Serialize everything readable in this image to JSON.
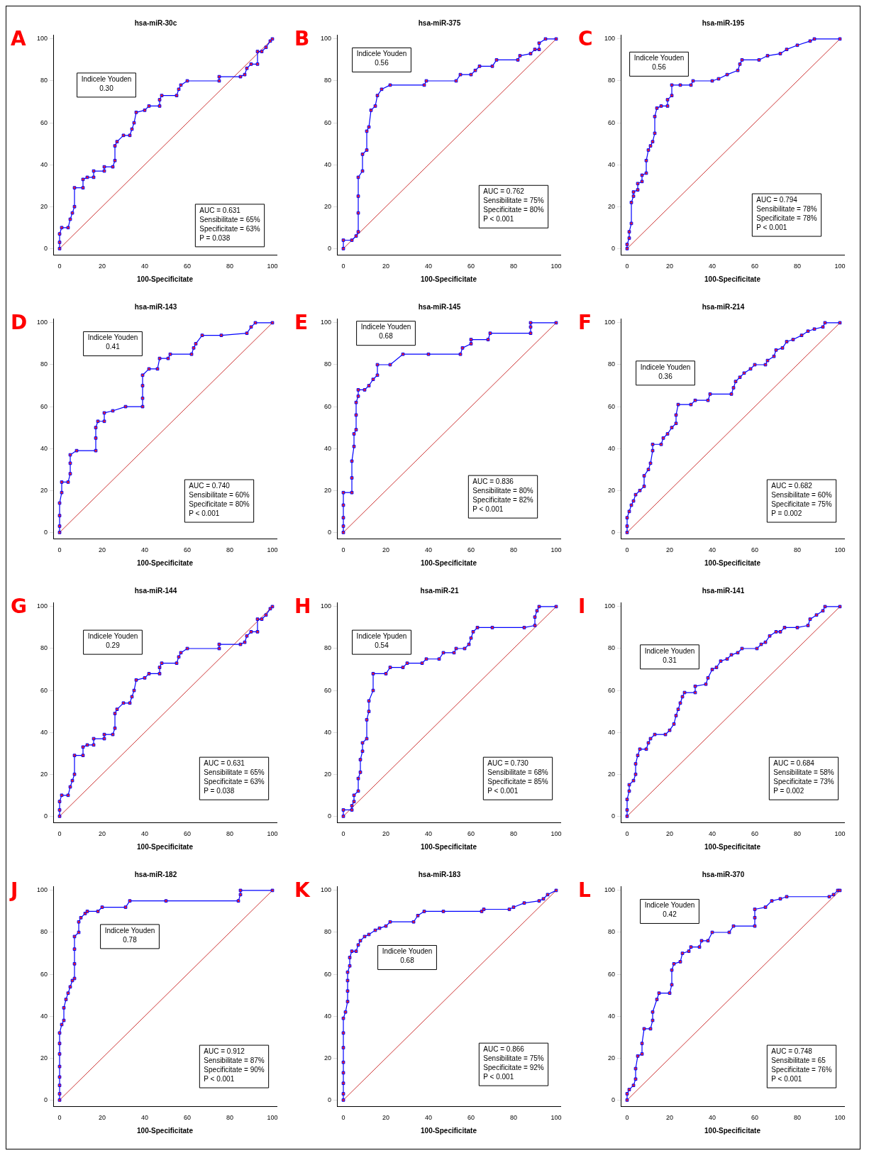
{
  "chart_data": [
    {
      "type": "line",
      "title": "hsa-miR-30c",
      "xlabel": "100-Specificitate",
      "xlim": [
        -3,
        102
      ],
      "ylim": [
        -3,
        102
      ],
      "xticks": [
        0,
        20,
        40,
        60,
        80,
        100
      ],
      "yticks": [
        0,
        20,
        40,
        60,
        80,
        100
      ],
      "grid": false,
      "legend": false,
      "series": [
        {
          "color": "#0000ff",
          "marker": "square",
          "x": [
            0,
            0,
            0,
            1,
            4,
            5,
            6,
            7,
            7,
            11,
            11,
            13,
            16,
            16,
            21,
            21,
            25,
            26,
            26,
            27,
            30,
            33,
            34,
            35,
            36,
            40,
            42,
            47,
            47,
            48,
            55,
            56,
            57,
            60,
            75,
            75,
            85,
            87,
            88,
            90,
            93,
            93,
            95,
            97,
            99,
            100
          ],
          "values": [
            0,
            3,
            7,
            10,
            10,
            14,
            17,
            20,
            29,
            29,
            33,
            34,
            34,
            37,
            37,
            39,
            39,
            42,
            49,
            51,
            54,
            54,
            57,
            60,
            65,
            66,
            68,
            68,
            71,
            73,
            73,
            76,
            78,
            80,
            80,
            82,
            82,
            83,
            86,
            88,
            88,
            94,
            94,
            96,
            99,
            100
          ]
        },
        {
          "color": "#c00000",
          "marker": "none",
          "x": [
            0,
            100
          ],
          "values": [
            0,
            100
          ]
        }
      ],
      "annotations": [
        "A",
        "Indicele Youden\n0.30",
        "AUC = 0.631\nSensibilitate = 65%\nSpecificitate = 63%\nP = 0.038"
      ]
    },
    {
      "type": "line",
      "title": "hsa-miR-375",
      "xlabel": "100-Specificitate",
      "xlim": [
        -3,
        102
      ],
      "ylim": [
        -3,
        102
      ],
      "xticks": [
        0,
        20,
        40,
        60,
        80,
        100
      ],
      "yticks": [
        0,
        20,
        40,
        60,
        80,
        100
      ],
      "grid": false,
      "legend": false,
      "series": [
        {
          "color": "#0000ff",
          "marker": "square",
          "x": [
            0,
            0,
            4,
            6,
            7,
            7,
            7,
            7,
            9,
            9,
            11,
            11,
            12,
            13,
            15,
            16,
            18,
            22,
            38,
            39,
            53,
            55,
            60,
            62,
            64,
            70,
            72,
            82,
            83,
            88,
            90,
            92,
            92,
            95,
            100
          ],
          "values": [
            0,
            4,
            4,
            6,
            8,
            17,
            25,
            34,
            37,
            45,
            47,
            56,
            58,
            66,
            68,
            73,
            76,
            78,
            78,
            80,
            80,
            83,
            83,
            85,
            87,
            87,
            90,
            90,
            92,
            93,
            95,
            95,
            98,
            100,
            100
          ]
        },
        {
          "color": "#c00000",
          "marker": "none",
          "x": [
            0,
            100
          ],
          "values": [
            0,
            100
          ]
        }
      ],
      "annotations": [
        "B",
        "Indicele Youden\n0.56",
        "AUC = 0.762\nSensibilitate = 75%\nSpecificitate = 80%\nP < 0.001"
      ]
    },
    {
      "type": "line",
      "title": "hsa-miR-195",
      "xlabel": "100-Specificitate",
      "xlim": [
        -3,
        102
      ],
      "ylim": [
        -3,
        102
      ],
      "xticks": [
        0,
        20,
        40,
        60,
        80,
        100
      ],
      "yticks": [
        0,
        20,
        40,
        60,
        80,
        100
      ],
      "grid": false,
      "legend": false,
      "series": [
        {
          "color": "#0000ff",
          "marker": "square",
          "x": [
            0,
            0,
            1,
            1,
            2,
            2,
            3,
            3,
            5,
            5,
            7,
            7,
            9,
            9,
            10,
            11,
            12,
            13,
            13,
            14,
            16,
            19,
            19,
            21,
            21,
            25,
            30,
            31,
            40,
            43,
            47,
            52,
            53,
            54,
            62,
            66,
            72,
            75,
            80,
            86,
            88,
            100
          ],
          "values": [
            0,
            2,
            5,
            8,
            12,
            22,
            25,
            27,
            28,
            31,
            32,
            35,
            36,
            42,
            47,
            49,
            51,
            55,
            63,
            67,
            68,
            68,
            71,
            73,
            78,
            78,
            78,
            80,
            80,
            81,
            83,
            85,
            88,
            90,
            90,
            92,
            93,
            95,
            97,
            99,
            100,
            100
          ]
        },
        {
          "color": "#c00000",
          "marker": "none",
          "x": [
            0,
            100
          ],
          "values": [
            0,
            100
          ]
        }
      ],
      "annotations": [
        "C",
        "Indicele Youden\n0.56",
        "AUC = 0.794\nSensibilitate = 78%\nSpecificitate = 78%\nP < 0.001"
      ]
    },
    {
      "type": "line",
      "title": "hsa-miR-143",
      "xlabel": "100-Specificitate",
      "xlim": [
        -3,
        102
      ],
      "ylim": [
        -3,
        102
      ],
      "xticks": [
        0,
        20,
        40,
        60,
        80,
        100
      ],
      "yticks": [
        0,
        20,
        40,
        60,
        80,
        100
      ],
      "grid": false,
      "legend": false,
      "series": [
        {
          "color": "#0000ff",
          "marker": "square",
          "x": [
            0,
            0,
            0,
            0,
            1,
            1,
            4,
            5,
            5,
            5,
            8,
            17,
            17,
            17,
            18,
            21,
            21,
            25,
            31,
            39,
            39,
            39,
            39,
            42,
            46,
            47,
            51,
            52,
            62,
            63,
            64,
            67,
            76,
            88,
            90,
            92,
            100
          ],
          "values": [
            0,
            3,
            8,
            14,
            19,
            24,
            24,
            28,
            33,
            37,
            39,
            39,
            45,
            50,
            53,
            53,
            57,
            58,
            60,
            60,
            64,
            70,
            75,
            78,
            78,
            83,
            83,
            85,
            85,
            88,
            90,
            94,
            94,
            95,
            98,
            100,
            100
          ]
        },
        {
          "color": "#c00000",
          "marker": "none",
          "x": [
            0,
            100
          ],
          "values": [
            0,
            100
          ]
        }
      ],
      "annotations": [
        "D",
        "Indicele Youden\n0.41",
        "AUC = 0.740\nSensibilitate = 60%\nSpecificitate = 80%\nP < 0.001"
      ]
    },
    {
      "type": "line",
      "title": "hsa-miR-145",
      "xlabel": "100-Specificitate",
      "xlim": [
        -3,
        102
      ],
      "ylim": [
        -3,
        102
      ],
      "xticks": [
        0,
        20,
        40,
        60,
        80,
        100
      ],
      "yticks": [
        0,
        20,
        40,
        60,
        80,
        100
      ],
      "grid": false,
      "legend": false,
      "series": [
        {
          "color": "#0000ff",
          "marker": "square",
          "x": [
            0,
            0,
            0,
            0,
            0,
            4,
            4,
            4,
            5,
            5,
            6,
            6,
            6,
            7,
            7,
            10,
            12,
            14,
            16,
            16,
            22,
            28,
            40,
            55,
            56,
            60,
            60,
            68,
            69,
            88,
            88,
            88,
            100
          ],
          "values": [
            0,
            3,
            7,
            13,
            19,
            19,
            26,
            34,
            41,
            47,
            49,
            56,
            62,
            65,
            68,
            68,
            70,
            73,
            75,
            80,
            80,
            85,
            85,
            85,
            88,
            90,
            92,
            92,
            95,
            95,
            98,
            100,
            100
          ]
        },
        {
          "color": "#c00000",
          "marker": "none",
          "x": [
            0,
            100
          ],
          "values": [
            0,
            100
          ]
        }
      ],
      "annotations": [
        "E",
        "Indicele Youden\n0.68",
        "AUC = 0.836\nSensibilitate = 80%\nSpecificitate = 82%\nP < 0.001"
      ]
    },
    {
      "type": "line",
      "title": "hsa-miR-214",
      "xlabel": "100-Specificitate",
      "xlim": [
        -3,
        102
      ],
      "ylim": [
        -3,
        102
      ],
      "xticks": [
        0,
        20,
        40,
        60,
        80,
        100
      ],
      "yticks": [
        0,
        20,
        40,
        60,
        80,
        100
      ],
      "grid": false,
      "legend": false,
      "series": [
        {
          "color": "#0000ff",
          "marker": "square",
          "x": [
            0,
            0,
            0,
            1,
            2,
            3,
            4,
            6,
            8,
            8,
            10,
            11,
            12,
            12,
            16,
            17,
            19,
            21,
            23,
            23,
            24,
            30,
            32,
            38,
            39,
            49,
            50,
            51,
            53,
            55,
            58,
            60,
            65,
            66,
            69,
            70,
            73,
            75,
            78,
            82,
            85,
            88,
            92,
            93,
            100
          ],
          "values": [
            0,
            3,
            7,
            10,
            13,
            15,
            18,
            20,
            22,
            27,
            30,
            33,
            39,
            42,
            42,
            45,
            47,
            50,
            52,
            56,
            61,
            61,
            63,
            63,
            66,
            66,
            69,
            72,
            74,
            76,
            78,
            80,
            80,
            82,
            84,
            87,
            88,
            91,
            92,
            94,
            96,
            97,
            98,
            100,
            100
          ]
        },
        {
          "color": "#c00000",
          "marker": "none",
          "x": [
            0,
            100
          ],
          "values": [
            0,
            100
          ]
        }
      ],
      "annotations": [
        "F",
        "Indicele Youden\n0.36",
        "AUC = 0.682\nSensibilitate = 60%\nSpecificitate = 75%\nP = 0.002"
      ]
    },
    {
      "type": "line",
      "title": "hsa-miR-144",
      "xlabel": "100-Specificitate",
      "xlim": [
        -3,
        102
      ],
      "ylim": [
        -3,
        102
      ],
      "xticks": [
        0,
        20,
        40,
        60,
        80,
        100
      ],
      "yticks": [
        0,
        20,
        40,
        60,
        80,
        100
      ],
      "grid": false,
      "legend": false,
      "series": [
        {
          "color": "#0000ff",
          "marker": "square",
          "x": [
            0,
            0,
            0,
            1,
            4,
            5,
            6,
            7,
            7,
            11,
            11,
            13,
            16,
            16,
            21,
            21,
            25,
            26,
            26,
            27,
            30,
            33,
            34,
            35,
            36,
            40,
            42,
            47,
            47,
            48,
            55,
            56,
            57,
            60,
            75,
            75,
            85,
            87,
            88,
            90,
            93,
            93,
            95,
            97,
            99,
            100
          ],
          "values": [
            0,
            3,
            7,
            10,
            10,
            14,
            17,
            20,
            29,
            29,
            33,
            34,
            34,
            37,
            37,
            39,
            39,
            42,
            49,
            51,
            54,
            54,
            57,
            60,
            65,
            66,
            68,
            68,
            71,
            73,
            73,
            76,
            78,
            80,
            80,
            82,
            82,
            83,
            86,
            88,
            88,
            94,
            94,
            96,
            99,
            100
          ]
        },
        {
          "color": "#c00000",
          "marker": "none",
          "x": [
            0,
            100
          ],
          "values": [
            0,
            100
          ]
        }
      ],
      "annotations": [
        "G",
        "Indicele Youden\n0.29",
        "AUC = 0.631\nSensibilitate = 65%\nSpecificitate = 63%\nP = 0.038"
      ]
    },
    {
      "type": "line",
      "title": "hsa-miR-21",
      "xlabel": "100-Specificitate",
      "xlim": [
        -3,
        102
      ],
      "ylim": [
        -3,
        102
      ],
      "xticks": [
        0,
        20,
        40,
        60,
        80,
        100
      ],
      "yticks": [
        0,
        20,
        40,
        60,
        80,
        100
      ],
      "grid": false,
      "legend": false,
      "series": [
        {
          "color": "#0000ff",
          "marker": "square",
          "x": [
            0,
            0,
            4,
            4,
            5,
            5,
            7,
            7,
            8,
            8,
            9,
            9,
            11,
            11,
            12,
            12,
            14,
            14,
            20,
            22,
            28,
            30,
            37,
            39,
            45,
            47,
            52,
            53,
            57,
            59,
            60,
            61,
            63,
            70,
            85,
            90,
            90,
            91,
            92,
            100
          ],
          "values": [
            0,
            3,
            3,
            5,
            7,
            10,
            12,
            18,
            21,
            27,
            31,
            35,
            37,
            46,
            50,
            55,
            60,
            68,
            68,
            71,
            71,
            73,
            73,
            75,
            75,
            78,
            78,
            80,
            80,
            82,
            85,
            88,
            90,
            90,
            90,
            91,
            95,
            98,
            100,
            100
          ]
        },
        {
          "color": "#c00000",
          "marker": "none",
          "x": [
            0,
            100
          ],
          "values": [
            0,
            100
          ]
        }
      ],
      "annotations": [
        "H",
        "Indicele Ypuden\n0.54",
        "AUC = 0.730\nSensibilitate = 68%\nSpecificitate = 85%\nP < 0.001"
      ]
    },
    {
      "type": "line",
      "title": "hsa-miR-141",
      "xlabel": "100-Specificitate",
      "xlim": [
        -3,
        102
      ],
      "ylim": [
        -3,
        102
      ],
      "xticks": [
        0,
        20,
        40,
        60,
        80,
        100
      ],
      "yticks": [
        0,
        20,
        40,
        60,
        80,
        100
      ],
      "grid": false,
      "legend": false,
      "series": [
        {
          "color": "#0000ff",
          "marker": "square",
          "x": [
            0,
            0,
            0,
            1,
            1,
            3,
            4,
            4,
            5,
            6,
            9,
            10,
            11,
            13,
            18,
            20,
            22,
            23,
            24,
            25,
            26,
            27,
            32,
            32,
            37,
            38,
            40,
            42,
            44,
            47,
            49,
            52,
            54,
            61,
            63,
            65,
            67,
            70,
            72,
            74,
            80,
            85,
            86,
            89,
            92,
            93,
            100
          ],
          "values": [
            0,
            3,
            8,
            12,
            15,
            17,
            20,
            25,
            29,
            32,
            32,
            35,
            37,
            39,
            39,
            41,
            44,
            48,
            51,
            54,
            57,
            59,
            59,
            62,
            63,
            66,
            70,
            71,
            74,
            75,
            77,
            78,
            80,
            80,
            82,
            83,
            86,
            88,
            88,
            90,
            90,
            91,
            94,
            96,
            98,
            100,
            100
          ]
        },
        {
          "color": "#c00000",
          "marker": "none",
          "x": [
            0,
            100
          ],
          "values": [
            0,
            100
          ]
        }
      ],
      "annotations": [
        "I",
        "Indicele Youden\n0.31",
        "AUC = 0.684\nSensibilitate = 58%\nSpecificitate = 73%\nP = 0.002"
      ]
    },
    {
      "type": "line",
      "title": "hsa-miR-182",
      "xlabel": "100-Specificitate",
      "xlim": [
        -3,
        102
      ],
      "ylim": [
        -3,
        102
      ],
      "xticks": [
        0,
        20,
        40,
        60,
        80,
        100
      ],
      "yticks": [
        0,
        20,
        40,
        60,
        80,
        100
      ],
      "grid": false,
      "legend": false,
      "series": [
        {
          "color": "#0000ff",
          "marker": "square",
          "x": [
            0,
            0,
            0,
            0,
            0,
            0,
            0,
            0,
            1,
            2,
            2,
            3,
            4,
            5,
            6,
            7,
            7,
            7,
            7,
            9,
            9,
            10,
            12,
            13,
            18,
            20,
            31,
            33,
            50,
            84,
            85,
            85,
            100
          ],
          "values": [
            0,
            3,
            7,
            11,
            16,
            22,
            27,
            32,
            36,
            38,
            44,
            48,
            51,
            54,
            57,
            58,
            65,
            72,
            78,
            80,
            85,
            87,
            89,
            90,
            90,
            92,
            92,
            95,
            95,
            95,
            98,
            100,
            100
          ]
        },
        {
          "color": "#c00000",
          "marker": "none",
          "x": [
            0,
            100
          ],
          "values": [
            0,
            100
          ]
        }
      ],
      "annotations": [
        "J",
        "Indicele Youden\n0.78",
        "AUC = 0.912\nSensibilitate = 87%\nSpecificitate = 90%\nP < 0.001"
      ]
    },
    {
      "type": "line",
      "title": "hsa-miR-183",
      "xlabel": "100-Specificitate",
      "xlim": [
        -3,
        102
      ],
      "ylim": [
        -3,
        102
      ],
      "xticks": [
        0,
        20,
        40,
        60,
        80,
        100
      ],
      "yticks": [
        0,
        20,
        40,
        60,
        80,
        100
      ],
      "grid": false,
      "legend": false,
      "series": [
        {
          "color": "#0000ff",
          "marker": "square",
          "x": [
            0,
            0,
            0,
            0,
            0,
            0,
            0,
            0,
            1,
            2,
            2,
            2,
            2,
            3,
            3,
            4,
            6,
            7,
            8,
            10,
            12,
            15,
            17,
            20,
            22,
            33,
            35,
            38,
            47,
            65,
            66,
            78,
            80,
            85,
            92,
            94,
            96,
            100
          ],
          "values": [
            0,
            3,
            8,
            13,
            18,
            25,
            32,
            39,
            42,
            47,
            52,
            57,
            61,
            64,
            68,
            71,
            71,
            74,
            76,
            78,
            79,
            81,
            82,
            83,
            85,
            85,
            88,
            90,
            90,
            90,
            91,
            91,
            92,
            94,
            95,
            96,
            98,
            100
          ]
        },
        {
          "color": "#c00000",
          "marker": "none",
          "x": [
            0,
            100
          ],
          "values": [
            0,
            100
          ]
        }
      ],
      "annotations": [
        "K",
        "Indicele Youden\n0.68",
        "AUC = 0.866\nSensibilitate = 75%\nSpecificitate = 92%\nP < 0.001"
      ]
    },
    {
      "type": "line",
      "title": "hsa-miR-370",
      "xlabel": "100-Specificitate",
      "xlim": [
        -3,
        102
      ],
      "ylim": [
        -3,
        102
      ],
      "xticks": [
        0,
        20,
        40,
        60,
        80,
        100
      ],
      "yticks": [
        0,
        20,
        40,
        60,
        80,
        100
      ],
      "grid": false,
      "legend": false,
      "series": [
        {
          "color": "#0000ff",
          "marker": "square",
          "x": [
            0,
            0,
            1,
            3,
            4,
            4,
            5,
            7,
            7,
            8,
            11,
            12,
            12,
            14,
            15,
            20,
            21,
            21,
            22,
            25,
            26,
            29,
            30,
            34,
            35,
            38,
            40,
            48,
            50,
            60,
            60,
            60,
            65,
            68,
            72,
            75,
            95,
            97,
            99,
            100
          ],
          "values": [
            0,
            3,
            5,
            7,
            10,
            15,
            21,
            22,
            27,
            34,
            34,
            38,
            42,
            48,
            51,
            51,
            55,
            62,
            65,
            66,
            70,
            71,
            73,
            73,
            76,
            76,
            80,
            80,
            83,
            83,
            87,
            91,
            92,
            95,
            96,
            97,
            97,
            98,
            100,
            100
          ]
        },
        {
          "color": "#c00000",
          "marker": "none",
          "x": [
            0,
            100
          ],
          "values": [
            0,
            100
          ]
        }
      ],
      "annotations": [
        "L",
        "Indicele Youden\n0.42",
        "AUC = 0.748\nSensibilitate = 65\nSpecificitate = 76%\nP < 0.001"
      ]
    }
  ]
}
